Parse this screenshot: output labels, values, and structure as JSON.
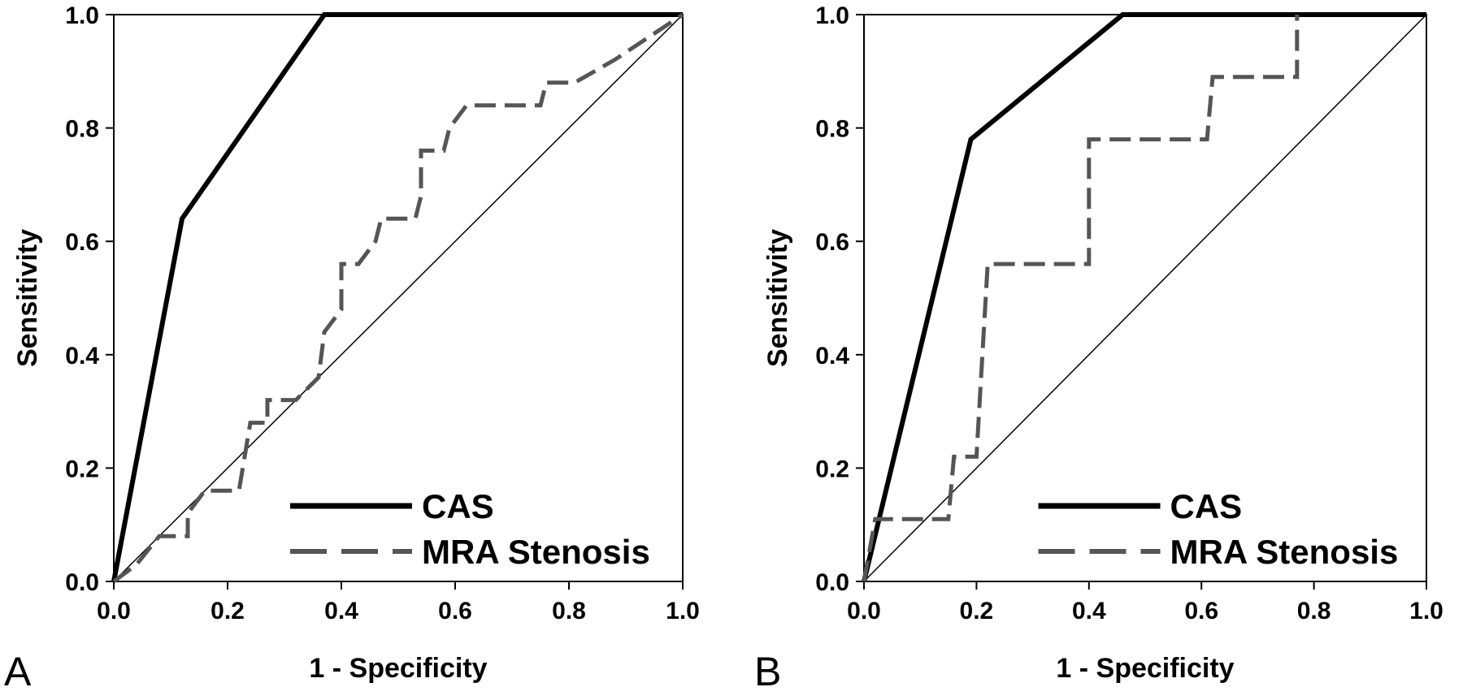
{
  "colors": {
    "background": "#ffffff",
    "axis": "#000000",
    "cas": "#000000",
    "mra": "#555555",
    "reference": "#000000"
  },
  "chart_data": [
    {
      "type": "line",
      "panel_label": "A",
      "xlabel": "1 - Specificity",
      "ylabel": "Sensitivity",
      "xlim": [
        0.0,
        1.0
      ],
      "ylim": [
        0.0,
        1.0
      ],
      "xticks": [
        "0.0",
        "0.2",
        "0.4",
        "0.6",
        "0.8",
        "1.0"
      ],
      "yticks": [
        "0.0",
        "0.2",
        "0.4",
        "0.6",
        "0.8",
        "1.0"
      ],
      "grid": false,
      "legend_position": "bottom-right",
      "reference_line": [
        [
          0,
          0
        ],
        [
          1,
          1
        ]
      ],
      "series": [
        {
          "name": "CAS",
          "style": "solid",
          "points": [
            [
              0,
              0
            ],
            [
              0.12,
              0.64
            ],
            [
              0.37,
              1.0
            ],
            [
              1.0,
              1.0
            ]
          ]
        },
        {
          "name": "MRA Stenosis",
          "style": "dashed",
          "points": [
            [
              0,
              0
            ],
            [
              0.04,
              0.03
            ],
            [
              0.08,
              0.08
            ],
            [
              0.13,
              0.08
            ],
            [
              0.13,
              0.12
            ],
            [
              0.16,
              0.16
            ],
            [
              0.22,
              0.16
            ],
            [
              0.24,
              0.28
            ],
            [
              0.27,
              0.28
            ],
            [
              0.27,
              0.32
            ],
            [
              0.32,
              0.32
            ],
            [
              0.36,
              0.36
            ],
            [
              0.37,
              0.44
            ],
            [
              0.4,
              0.48
            ],
            [
              0.4,
              0.56
            ],
            [
              0.43,
              0.56
            ],
            [
              0.46,
              0.6
            ],
            [
              0.47,
              0.64
            ],
            [
              0.53,
              0.64
            ],
            [
              0.54,
              0.68
            ],
            [
              0.54,
              0.76
            ],
            [
              0.58,
              0.76
            ],
            [
              0.59,
              0.8
            ],
            [
              0.62,
              0.84
            ],
            [
              0.75,
              0.84
            ],
            [
              0.76,
              0.88
            ],
            [
              0.81,
              0.88
            ],
            [
              0.88,
              0.92
            ],
            [
              1.0,
              1.0
            ]
          ]
        }
      ]
    },
    {
      "type": "line",
      "panel_label": "B",
      "xlabel": "1 - Specificity",
      "ylabel": "Sensitivity",
      "xlim": [
        0.0,
        1.0
      ],
      "ylim": [
        0.0,
        1.0
      ],
      "xticks": [
        "0.0",
        "0.2",
        "0.4",
        "0.6",
        "0.8",
        "1.0"
      ],
      "yticks": [
        "0.0",
        "0.2",
        "0.4",
        "0.6",
        "0.8",
        "1.0"
      ],
      "grid": false,
      "legend_position": "bottom-right",
      "reference_line": [
        [
          0,
          0
        ],
        [
          1,
          1
        ]
      ],
      "series": [
        {
          "name": "CAS",
          "style": "solid",
          "points": [
            [
              0,
              0
            ],
            [
              0.19,
              0.78
            ],
            [
              0.46,
              1.0
            ],
            [
              1.0,
              1.0
            ]
          ]
        },
        {
          "name": "MRA Stenosis",
          "style": "dashed",
          "points": [
            [
              0,
              0
            ],
            [
              0.02,
              0.11
            ],
            [
              0.15,
              0.11
            ],
            [
              0.16,
              0.22
            ],
            [
              0.2,
              0.22
            ],
            [
              0.22,
              0.56
            ],
            [
              0.4,
              0.56
            ],
            [
              0.4,
              0.78
            ],
            [
              0.61,
              0.78
            ],
            [
              0.62,
              0.89
            ],
            [
              0.77,
              0.89
            ],
            [
              0.77,
              1.0
            ]
          ]
        }
      ]
    }
  ]
}
